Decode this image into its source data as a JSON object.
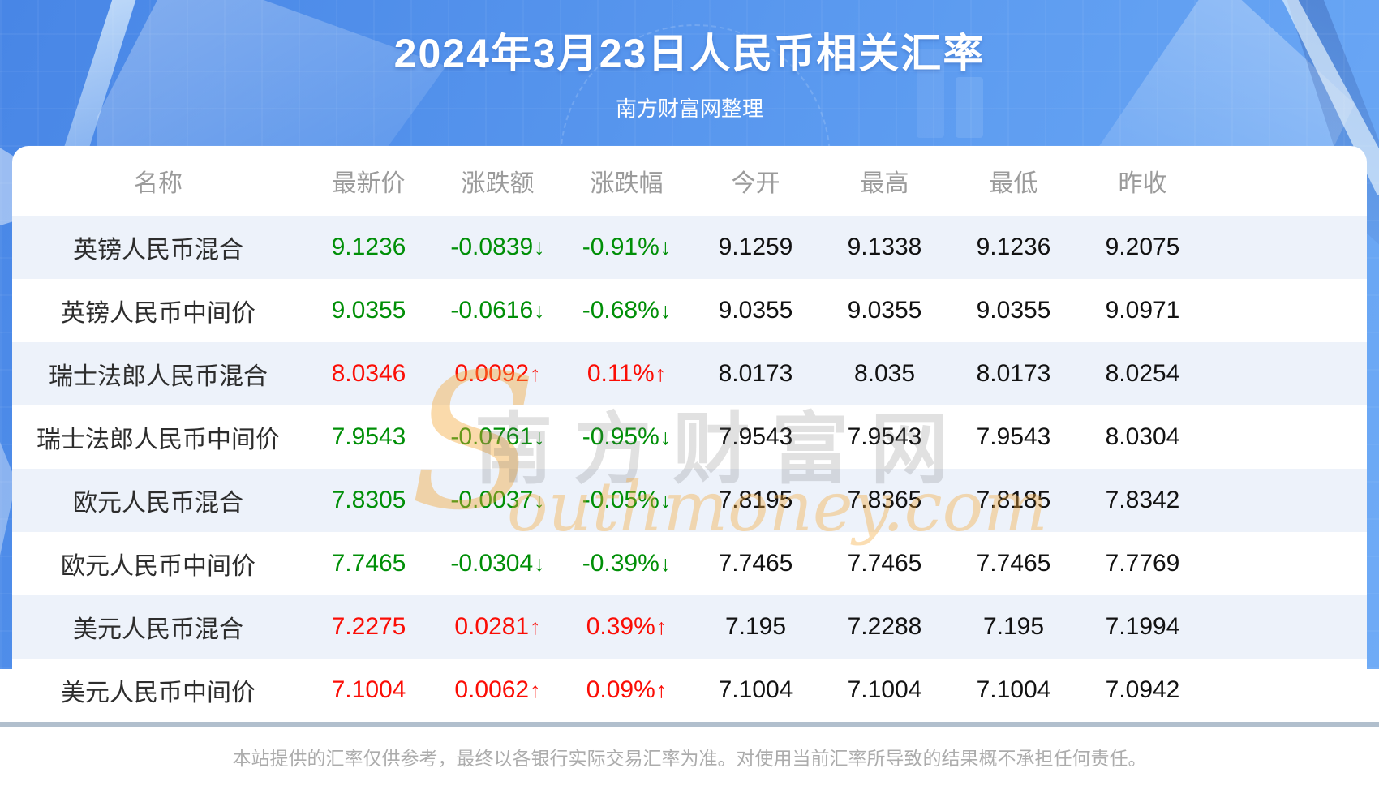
{
  "header": {
    "title": "2024年3月23日人民币相关汇率",
    "subtitle": "南方财富网整理"
  },
  "table": {
    "columns": [
      "名称",
      "最新价",
      "涨跌额",
      "涨跌幅",
      "今开",
      "最高",
      "最低",
      "昨收"
    ],
    "arrows": {
      "up": "↑",
      "down": "↓"
    },
    "rows": [
      {
        "name": "英镑人民币混合",
        "latest": "9.1236",
        "change": "-0.0839",
        "change_pct": "-0.91%",
        "open": "9.1259",
        "high": "9.1338",
        "low": "9.1236",
        "prev_close": "9.2075",
        "direction": "down"
      },
      {
        "name": "英镑人民币中间价",
        "latest": "9.0355",
        "change": "-0.0616",
        "change_pct": "-0.68%",
        "open": "9.0355",
        "high": "9.0355",
        "low": "9.0355",
        "prev_close": "9.0971",
        "direction": "down"
      },
      {
        "name": "瑞士法郎人民币混合",
        "latest": "8.0346",
        "change": "0.0092",
        "change_pct": "0.11%",
        "open": "8.0173",
        "high": "8.035",
        "low": "8.0173",
        "prev_close": "8.0254",
        "direction": "up"
      },
      {
        "name": "瑞士法郎人民币中间价",
        "latest": "7.9543",
        "change": "-0.0761",
        "change_pct": "-0.95%",
        "open": "7.9543",
        "high": "7.9543",
        "low": "7.9543",
        "prev_close": "8.0304",
        "direction": "down"
      },
      {
        "name": "欧元人民币混合",
        "latest": "7.8305",
        "change": "-0.0037",
        "change_pct": "-0.05%",
        "open": "7.8195",
        "high": "7.8365",
        "low": "7.8185",
        "prev_close": "7.8342",
        "direction": "down"
      },
      {
        "name": "欧元人民币中间价",
        "latest": "7.7465",
        "change": "-0.0304",
        "change_pct": "-0.39%",
        "open": "7.7465",
        "high": "7.7465",
        "low": "7.7465",
        "prev_close": "7.7769",
        "direction": "down"
      },
      {
        "name": "美元人民币混合",
        "latest": "7.2275",
        "change": "0.0281",
        "change_pct": "0.39%",
        "open": "7.195",
        "high": "7.2288",
        "low": "7.195",
        "prev_close": "7.1994",
        "direction": "up"
      },
      {
        "name": "美元人民币中间价",
        "latest": "7.1004",
        "change": "0.0062",
        "change_pct": "0.09%",
        "open": "7.1004",
        "high": "7.1004",
        "low": "7.1004",
        "prev_close": "7.0942",
        "direction": "up"
      }
    ]
  },
  "watermark": {
    "s": "S",
    "cn": "南方财富网",
    "en": "outhmoney.com"
  },
  "footer": {
    "disclaimer": "本站提供的汇率仅供参考，最终以各银行实际交易汇率为准。对使用当前汇率所导致的结果概不承担任何责任。"
  },
  "colors": {
    "hero_blue": "#4886e6",
    "up_red": "#fb0d05",
    "down_green": "#008f07",
    "row_alt_bg": "#edf2fa",
    "watermark_orange": "#f4a836",
    "divider_gray": "#b1bfcd"
  },
  "chart_data": {
    "type": "table",
    "title": "2024年3月23日人民币相关汇率",
    "subtitle": "南方财富网整理",
    "columns": [
      "名称",
      "最新价",
      "涨跌额",
      "涨跌幅",
      "今开",
      "最高",
      "最低",
      "昨收"
    ],
    "rows": [
      [
        "英镑人民币混合",
        "9.1236",
        "-0.0839↓",
        "-0.91%↓",
        "9.1259",
        "9.1338",
        "9.1236",
        "9.2075"
      ],
      [
        "英镑人民币中间价",
        "9.0355",
        "-0.0616↓",
        "-0.68%↓",
        "9.0355",
        "9.0355",
        "9.0355",
        "9.0971"
      ],
      [
        "瑞士法郎人民币混合",
        "8.0346",
        "0.0092↑",
        "0.11%↑",
        "8.0173",
        "8.035",
        "8.0173",
        "8.0254"
      ],
      [
        "瑞士法郎人民币中间价",
        "7.9543",
        "-0.0761↓",
        "-0.95%↓",
        "7.9543",
        "7.9543",
        "7.9543",
        "8.0304"
      ],
      [
        "欧元人民币混合",
        "7.8305",
        "-0.0037↓",
        "-0.05%↓",
        "7.8195",
        "7.8365",
        "7.8185",
        "7.8342"
      ],
      [
        "欧元人民币中间价",
        "7.7465",
        "-0.0304↓",
        "-0.39%↓",
        "7.7465",
        "7.7465",
        "7.7465",
        "7.7769"
      ],
      [
        "美元人民币混合",
        "7.2275",
        "0.0281↑",
        "0.39%↑",
        "7.195",
        "7.2288",
        "7.195",
        "7.1994"
      ],
      [
        "美元人民币中间价",
        "7.1004",
        "0.0062↑",
        "0.09%↑",
        "7.1004",
        "7.1004",
        "7.1004",
        "7.0942"
      ]
    ]
  }
}
